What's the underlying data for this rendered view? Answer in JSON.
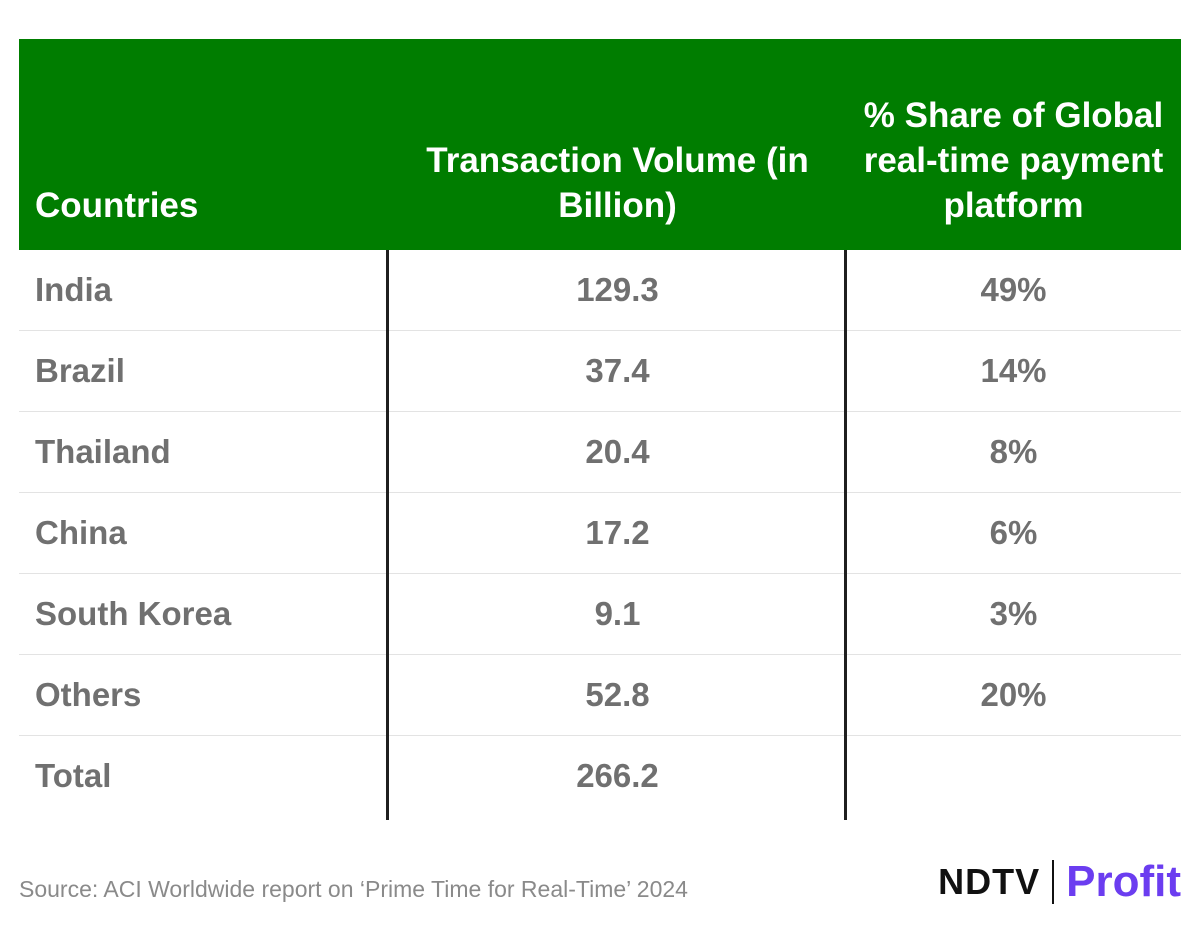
{
  "chart_data": {
    "type": "table",
    "columns": [
      "Countries",
      "Transaction Volume (in Billion)",
      "% Share of Global real-time payment platform"
    ],
    "rows": [
      [
        "India",
        "129.3",
        "49%"
      ],
      [
        "Brazil",
        "37.4",
        "14%"
      ],
      [
        "Thailand",
        "20.4",
        "8%"
      ],
      [
        "China",
        "17.2",
        "6%"
      ],
      [
        "South Korea",
        "9.1",
        "3%"
      ],
      [
        "Others",
        "52.8",
        "20%"
      ],
      [
        "Total",
        "266.2",
        ""
      ]
    ],
    "header_color": "#007d00"
  },
  "footer": {
    "source": "Source: ACI Worldwide report on ‘Prime Time for Real-Time’ 2024",
    "logo_left": "NDTV",
    "logo_right": "Profit"
  }
}
